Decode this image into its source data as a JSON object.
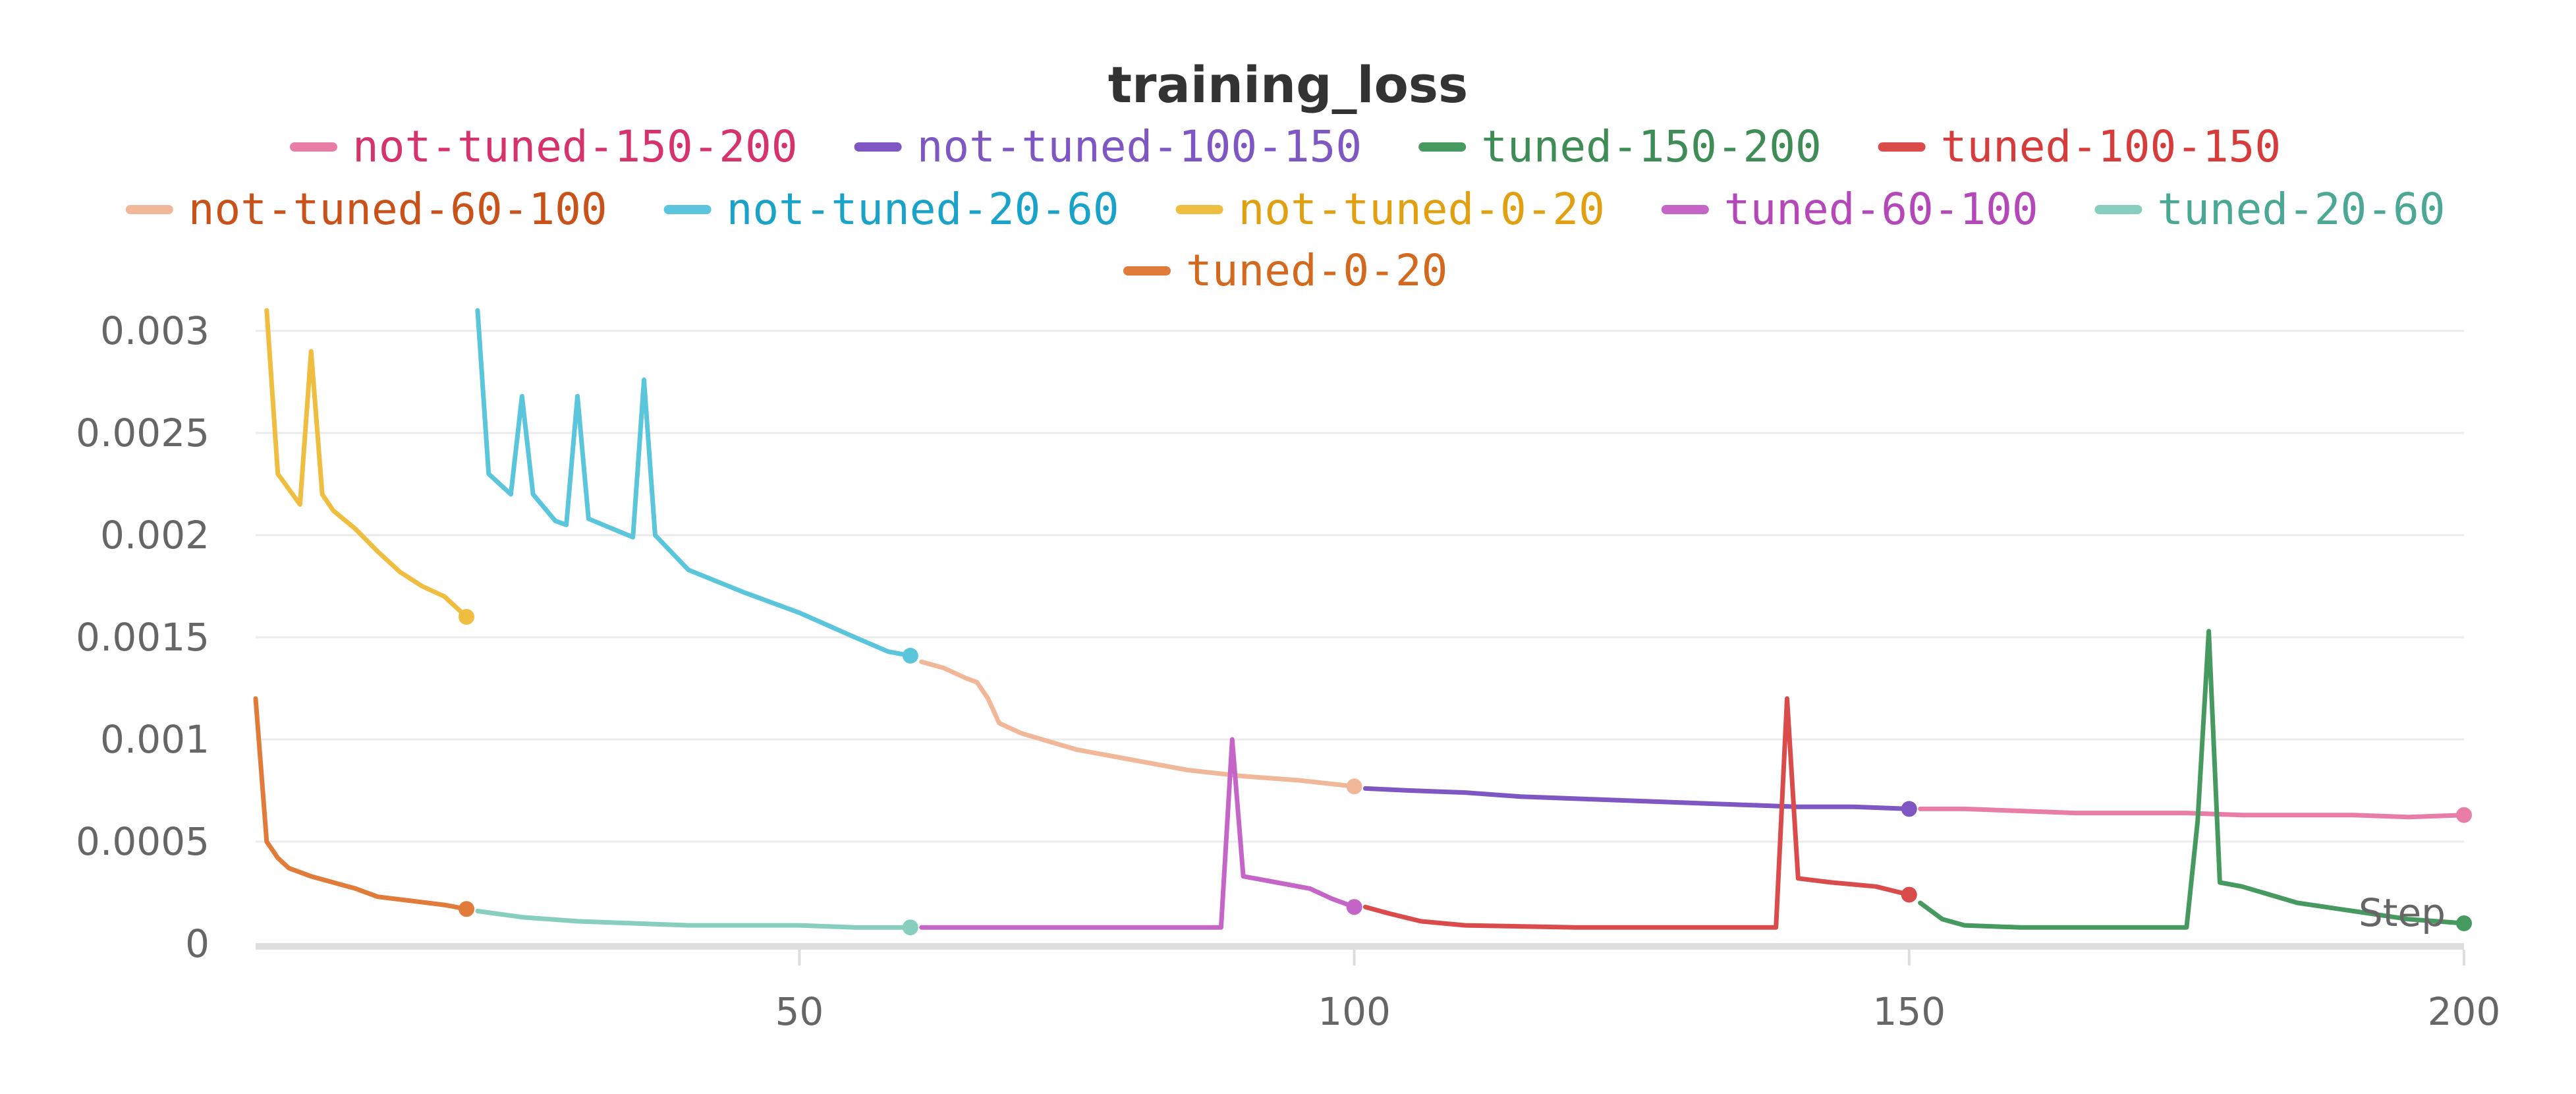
{
  "chart_data": {
    "type": "line",
    "title": "training_loss",
    "xlabel": "Step",
    "ylabel": "",
    "xlim": [
      1,
      200
    ],
    "ylim": [
      0,
      0.003
    ],
    "x_ticks": [
      50,
      100,
      150,
      200
    ],
    "y_ticks": [
      0,
      0.0005,
      0.001,
      0.0015,
      0.002,
      0.0025,
      0.003
    ],
    "y_tick_labels": [
      "0",
      "0.0005",
      "0.001",
      "0.0015",
      "0.002",
      "0.0025",
      "0.003"
    ],
    "grid": true,
    "legend_position": "top",
    "series": [
      {
        "name": "not-tuned-150-200",
        "color": "#e87ea7",
        "legend_text_color": "#d6336c",
        "points": [
          [
            151,
            0.00066
          ],
          [
            155,
            0.00066
          ],
          [
            160,
            0.00065
          ],
          [
            165,
            0.00064
          ],
          [
            170,
            0.00064
          ],
          [
            175,
            0.00064
          ],
          [
            180,
            0.00063
          ],
          [
            185,
            0.00063
          ],
          [
            190,
            0.00063
          ],
          [
            195,
            0.00062
          ],
          [
            200,
            0.00063
          ]
        ]
      },
      {
        "name": "not-tuned-100-150",
        "color": "#7e57c2",
        "legend_text_color": "#7e57c2",
        "points": [
          [
            101,
            0.00076
          ],
          [
            105,
            0.00075
          ],
          [
            110,
            0.00074
          ],
          [
            115,
            0.00072
          ],
          [
            120,
            0.00071
          ],
          [
            125,
            0.0007
          ],
          [
            130,
            0.00069
          ],
          [
            135,
            0.00068
          ],
          [
            140,
            0.00067
          ],
          [
            145,
            0.00067
          ],
          [
            150,
            0.00066
          ]
        ]
      },
      {
        "name": "tuned-150-200",
        "color": "#479a5f",
        "legend_text_color": "#3f8c57",
        "points": [
          [
            151,
            0.0002
          ],
          [
            153,
            0.00012
          ],
          [
            155,
            9e-05
          ],
          [
            160,
            8e-05
          ],
          [
            170,
            8e-05
          ],
          [
            175,
            8e-05
          ],
          [
            176,
            0.0006
          ],
          [
            177,
            0.00153
          ],
          [
            178,
            0.0003
          ],
          [
            180,
            0.00028
          ],
          [
            185,
            0.0002
          ],
          [
            190,
            0.00016
          ],
          [
            195,
            0.00012
          ],
          [
            200,
            0.0001
          ]
        ]
      },
      {
        "name": "tuned-100-150",
        "color": "#da4c4c",
        "legend_text_color": "#d63c3c",
        "points": [
          [
            101,
            0.00018
          ],
          [
            103,
            0.00015
          ],
          [
            106,
            0.00011
          ],
          [
            110,
            9e-05
          ],
          [
            120,
            8e-05
          ],
          [
            130,
            8e-05
          ],
          [
            138,
            8e-05
          ],
          [
            139,
            0.0012
          ],
          [
            140,
            0.00032
          ],
          [
            143,
            0.0003
          ],
          [
            147,
            0.00028
          ],
          [
            150,
            0.00024
          ]
        ]
      },
      {
        "name": "not-tuned-60-100",
        "color": "#f0b899",
        "legend_text_color": "#c8521a",
        "points": [
          [
            61,
            0.00138
          ],
          [
            63,
            0.00135
          ],
          [
            65,
            0.0013
          ],
          [
            66,
            0.00128
          ],
          [
            67,
            0.0012
          ],
          [
            68,
            0.00108
          ],
          [
            70,
            0.00103
          ],
          [
            75,
            0.00095
          ],
          [
            80,
            0.0009
          ],
          [
            85,
            0.00085
          ],
          [
            90,
            0.00082
          ],
          [
            95,
            0.0008
          ],
          [
            100,
            0.00077
          ]
        ]
      },
      {
        "name": "not-tuned-20-60",
        "color": "#5bc5db",
        "legend_text_color": "#1aa3c8",
        "points": [
          [
            21,
            0.0031
          ],
          [
            22,
            0.0023
          ],
          [
            24,
            0.0022
          ],
          [
            25,
            0.00268
          ],
          [
            26,
            0.0022
          ],
          [
            28,
            0.00207
          ],
          [
            29,
            0.00205
          ],
          [
            30,
            0.00268
          ],
          [
            31,
            0.00208
          ],
          [
            35,
            0.00199
          ],
          [
            36,
            0.00276
          ],
          [
            37,
            0.002
          ],
          [
            40,
            0.00183
          ],
          [
            45,
            0.00172
          ],
          [
            50,
            0.00162
          ],
          [
            55,
            0.0015
          ],
          [
            58,
            0.00143
          ],
          [
            60,
            0.00141
          ]
        ]
      },
      {
        "name": "not-tuned-0-20",
        "color": "#efbd40",
        "legend_text_color": "#e0a012",
        "points": [
          [
            2,
            0.0031
          ],
          [
            3,
            0.0023
          ],
          [
            5,
            0.00215
          ],
          [
            6,
            0.0029
          ],
          [
            7,
            0.0022
          ],
          [
            8,
            0.00212
          ],
          [
            10,
            0.00203
          ],
          [
            12,
            0.00192
          ],
          [
            14,
            0.00182
          ],
          [
            16,
            0.00175
          ],
          [
            18,
            0.0017
          ],
          [
            19,
            0.00165
          ],
          [
            20,
            0.0016
          ]
        ]
      },
      {
        "name": "tuned-60-100",
        "color": "#c565c7",
        "legend_text_color": "#b548b8",
        "points": [
          [
            61,
            8e-05
          ],
          [
            70,
            8e-05
          ],
          [
            80,
            8e-05
          ],
          [
            88,
            8e-05
          ],
          [
            89,
            0.001
          ],
          [
            90,
            0.00033
          ],
          [
            93,
            0.0003
          ],
          [
            96,
            0.00027
          ],
          [
            98,
            0.00022
          ],
          [
            100,
            0.00018
          ]
        ]
      },
      {
        "name": "tuned-20-60",
        "color": "#87cebf",
        "legend_text_color": "#4aa894",
        "points": [
          [
            21,
            0.00016
          ],
          [
            25,
            0.00013
          ],
          [
            30,
            0.00011
          ],
          [
            35,
            0.0001
          ],
          [
            40,
            9e-05
          ],
          [
            45,
            9e-05
          ],
          [
            50,
            9e-05
          ],
          [
            55,
            8e-05
          ],
          [
            60,
            8e-05
          ]
        ]
      },
      {
        "name": "tuned-0-20",
        "color": "#e07b3a",
        "legend_text_color": "#d2691e",
        "points": [
          [
            1,
            0.0012
          ],
          [
            2,
            0.0005
          ],
          [
            3,
            0.00042
          ],
          [
            4,
            0.00037
          ],
          [
            6,
            0.00033
          ],
          [
            8,
            0.0003
          ],
          [
            10,
            0.00027
          ],
          [
            12,
            0.00023
          ],
          [
            15,
            0.00021
          ],
          [
            18,
            0.00019
          ],
          [
            20,
            0.00017
          ]
        ]
      }
    ]
  }
}
